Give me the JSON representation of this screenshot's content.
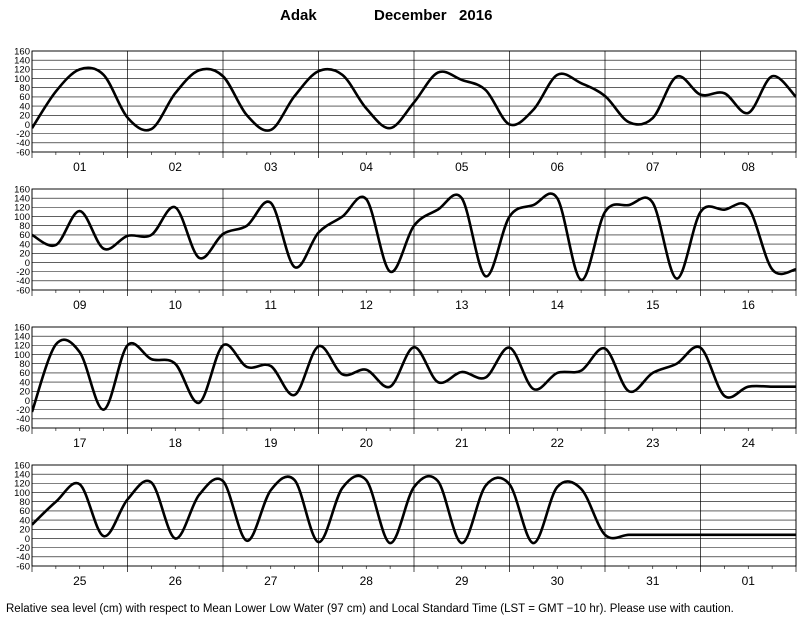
{
  "title": {
    "station": "Adak",
    "month_year": "December   2016"
  },
  "footer": "Relative sea level (cm) with respect to Mean Lower Low Water (97 cm) and Local Standard Time (LST = GMT −10 hr). Please use with caution.",
  "colors": {
    "line": "#000000",
    "grid": "#000000",
    "background": "#ffffff"
  },
  "chart_data": {
    "type": "line",
    "ylim": [
      -60,
      160
    ],
    "yticks": [
      160,
      140,
      120,
      100,
      80,
      60,
      40,
      20,
      0,
      -20,
      -40,
      -60
    ],
    "grid": true,
    "panels": [
      {
        "days": [
          "01",
          "02",
          "03",
          "04",
          "05",
          "06",
          "07",
          "08"
        ],
        "x": [
          0,
          6,
          12,
          18,
          24,
          30,
          36,
          42,
          48,
          54,
          60,
          66,
          72,
          78,
          84,
          90,
          96,
          102,
          108,
          114,
          120,
          126,
          132,
          138,
          144,
          150,
          156,
          162,
          168,
          174,
          180,
          186,
          192
        ],
        "y": [
          -8,
          72,
          120,
          108,
          15,
          -10,
          68,
          118,
          105,
          20,
          -12,
          62,
          116,
          108,
          35,
          -8,
          48,
          113,
          97,
          75,
          0,
          32,
          108,
          90,
          62,
          5,
          14,
          104,
          65,
          68,
          25,
          105,
          60
        ]
      },
      {
        "days": [
          "09",
          "10",
          "11",
          "12",
          "13",
          "14",
          "15",
          "16"
        ],
        "x": [
          0,
          6,
          12,
          18,
          24,
          30,
          36,
          42,
          48,
          54,
          60,
          66,
          72,
          78,
          84,
          90,
          96,
          102,
          108,
          114,
          120,
          126,
          132,
          138,
          144,
          150,
          156,
          162,
          168,
          174,
          180,
          186,
          192
        ],
        "y": [
          60,
          38,
          112,
          30,
          58,
          60,
          120,
          10,
          62,
          80,
          130,
          -10,
          65,
          100,
          138,
          -20,
          80,
          115,
          140,
          -30,
          100,
          125,
          140,
          -38,
          110,
          125,
          130,
          -35,
          110,
          115,
          120,
          -15,
          -15
        ]
      },
      {
        "days": [
          "17",
          "18",
          "19",
          "20",
          "21",
          "22",
          "23",
          "24"
        ],
        "x": [
          0,
          6,
          12,
          18,
          24,
          30,
          36,
          42,
          48,
          54,
          60,
          66,
          72,
          78,
          84,
          90,
          96,
          102,
          108,
          114,
          120,
          126,
          132,
          138,
          144,
          150,
          156,
          162,
          168,
          174,
          180,
          186,
          192
        ],
        "y": [
          -25,
          122,
          105,
          -20,
          120,
          90,
          80,
          -5,
          120,
          73,
          75,
          12,
          118,
          57,
          67,
          30,
          116,
          40,
          62,
          50,
          115,
          25,
          60,
          65,
          113,
          20,
          60,
          80,
          115,
          10,
          30,
          30,
          30
        ]
      },
      {
        "days": [
          "25",
          "26",
          "27",
          "28",
          "29",
          "30",
          "31",
          "01"
        ],
        "x": [
          0,
          6,
          12,
          18,
          24,
          30,
          36,
          42,
          48,
          54,
          60,
          66,
          72,
          78,
          84,
          90,
          96,
          102,
          108,
          114,
          120,
          126,
          132,
          138,
          144,
          150,
          156,
          162,
          168,
          174,
          180,
          186,
          192
        ],
        "y": [
          30,
          80,
          118,
          5,
          85,
          122,
          0,
          95,
          125,
          -5,
          105,
          127,
          -8,
          110,
          127,
          -10,
          112,
          125,
          -10,
          115,
          118,
          -10,
          112,
          108,
          8,
          8,
          8,
          8,
          8,
          8,
          8,
          8,
          8
        ]
      }
    ]
  }
}
